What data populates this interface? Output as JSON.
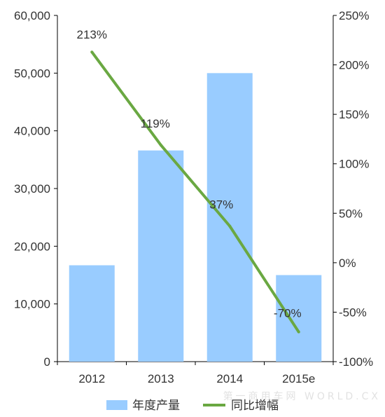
{
  "chart_data": {
    "type": "bar",
    "categories": [
      "2012",
      "2013",
      "2014",
      "2015e"
    ],
    "series": [
      {
        "name": "年度产量",
        "type": "bar",
        "axis": "left",
        "values": [
          16700,
          36600,
          50000,
          15000
        ]
      },
      {
        "name": "同比增幅",
        "type": "line",
        "axis": "right",
        "values": [
          213,
          119,
          37,
          -70
        ],
        "data_labels": [
          "213%",
          "119%",
          "37%",
          "-70%"
        ]
      }
    ],
    "y_left": {
      "ylim": [
        0,
        60000
      ],
      "ticks": [
        0,
        10000,
        20000,
        30000,
        40000,
        50000,
        60000
      ],
      "tick_labels": [
        "0",
        "10,000",
        "20,000",
        "30,000",
        "40,000",
        "50,000",
        "60,000"
      ]
    },
    "y_right": {
      "ylim": [
        -100,
        250
      ],
      "ticks": [
        -100,
        -50,
        0,
        50,
        100,
        150,
        200,
        250
      ],
      "tick_labels": [
        "-100%",
        "-50%",
        "0%",
        "50%",
        "100%",
        "150%",
        "200%",
        "250%"
      ]
    },
    "grid": false,
    "legend": "bottom",
    "colors": {
      "bar": "#99ccff",
      "line": "#6aa842",
      "text": "#333333",
      "axis": "#000000"
    }
  },
  "watermark": "第一商用车网 WORLD.CX"
}
